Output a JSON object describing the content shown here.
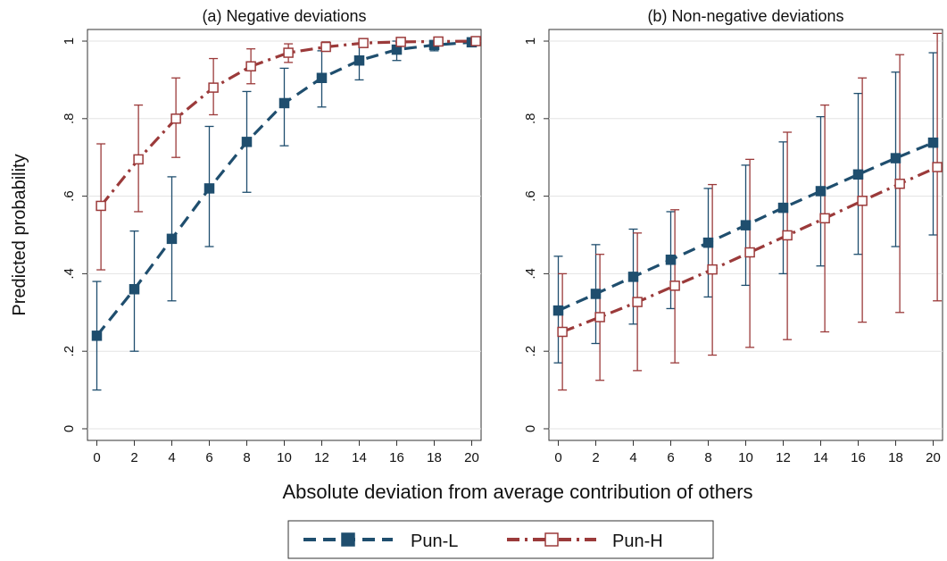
{
  "figure": {
    "ylabel": "Predicted probability",
    "xlabel": "Absolute deviation from average contribution of others",
    "legend": [
      {
        "label": "Pun-L",
        "color": "#1f4e6e",
        "marker": "filled-square",
        "dash": "dash"
      },
      {
        "label": "Pun-H",
        "color": "#9b3a3a",
        "marker": "hollow-square",
        "dash": "dash-dot"
      }
    ]
  },
  "chart_data": [
    {
      "type": "line",
      "title": "(a) Negative deviations",
      "xlabel": "Absolute deviation from average contribution of others",
      "ylabel": "Predicted probability",
      "x": [
        0,
        2,
        4,
        6,
        8,
        10,
        12,
        14,
        16,
        18,
        20
      ],
      "xticks": [
        "0",
        "2",
        "4",
        "6",
        "8",
        "10",
        "12",
        "14",
        "16",
        "18",
        "20"
      ],
      "yticks": [
        "0",
        ".2",
        ".4",
        ".6",
        ".8",
        "1"
      ],
      "xlim": [
        -0.5,
        20.5
      ],
      "ylim": [
        -0.03,
        1.03
      ],
      "grid": "horizontal",
      "legend": "bottom",
      "series": [
        {
          "name": "Pun-L",
          "color": "#1f4e6e",
          "marker": "filled-square",
          "dash": "dash",
          "values": [
            0.24,
            0.36,
            0.49,
            0.62,
            0.74,
            0.84,
            0.905,
            0.95,
            0.978,
            0.99,
            0.997
          ],
          "ci_low": [
            0.1,
            0.2,
            0.33,
            0.47,
            0.61,
            0.73,
            0.83,
            0.9,
            0.95,
            0.975,
            0.99
          ],
          "ci_high": [
            0.38,
            0.51,
            0.65,
            0.78,
            0.87,
            0.93,
            0.975,
            0.995,
            1.0,
            1.0,
            1.0
          ]
        },
        {
          "name": "Pun-H",
          "color": "#9b3a3a",
          "marker": "hollow-square",
          "dash": "dash-dot",
          "values": [
            0.575,
            0.695,
            0.8,
            0.88,
            0.935,
            0.97,
            0.985,
            0.995,
            0.998,
            0.999,
            1.0
          ],
          "ci_low": [
            0.41,
            0.56,
            0.7,
            0.81,
            0.89,
            0.945,
            0.975,
            0.99,
            0.995,
            0.998,
            0.999
          ],
          "ci_high": [
            0.735,
            0.835,
            0.905,
            0.955,
            0.98,
            0.993,
            0.998,
            1.0,
            1.0,
            1.0,
            1.0
          ]
        }
      ]
    },
    {
      "type": "line",
      "title": "(b) Non-negative deviations",
      "xlabel": "Absolute deviation from average contribution of others",
      "ylabel": "Predicted probability",
      "x": [
        0,
        2,
        4,
        6,
        8,
        10,
        12,
        14,
        16,
        18,
        20
      ],
      "xticks": [
        "0",
        "2",
        "4",
        "6",
        "8",
        "10",
        "12",
        "14",
        "16",
        "18",
        "20"
      ],
      "yticks": [
        "0",
        ".2",
        ".4",
        ".6",
        ".8",
        "1"
      ],
      "xlim": [
        -0.5,
        20.5
      ],
      "ylim": [
        -0.03,
        1.03
      ],
      "grid": "horizontal",
      "legend": "bottom",
      "series": [
        {
          "name": "Pun-L",
          "color": "#1f4e6e",
          "marker": "filled-square",
          "dash": "dash",
          "values": [
            0.305,
            0.348,
            0.392,
            0.436,
            0.48,
            0.525,
            0.57,
            0.613,
            0.656,
            0.698,
            0.738
          ],
          "ci_low": [
            0.17,
            0.22,
            0.27,
            0.31,
            0.34,
            0.37,
            0.4,
            0.42,
            0.45,
            0.47,
            0.5
          ],
          "ci_high": [
            0.445,
            0.475,
            0.515,
            0.56,
            0.62,
            0.68,
            0.74,
            0.805,
            0.865,
            0.92,
            0.97
          ]
        },
        {
          "name": "Pun-H",
          "color": "#9b3a3a",
          "marker": "hollow-square",
          "dash": "dash-dot",
          "values": [
            0.25,
            0.288,
            0.327,
            0.369,
            0.411,
            0.455,
            0.499,
            0.543,
            0.588,
            0.632,
            0.675
          ],
          "ci_low": [
            0.1,
            0.125,
            0.15,
            0.17,
            0.19,
            0.21,
            0.23,
            0.25,
            0.275,
            0.3,
            0.33
          ],
          "ci_high": [
            0.4,
            0.45,
            0.505,
            0.565,
            0.63,
            0.695,
            0.765,
            0.835,
            0.905,
            0.965,
            1.02
          ]
        }
      ]
    }
  ]
}
